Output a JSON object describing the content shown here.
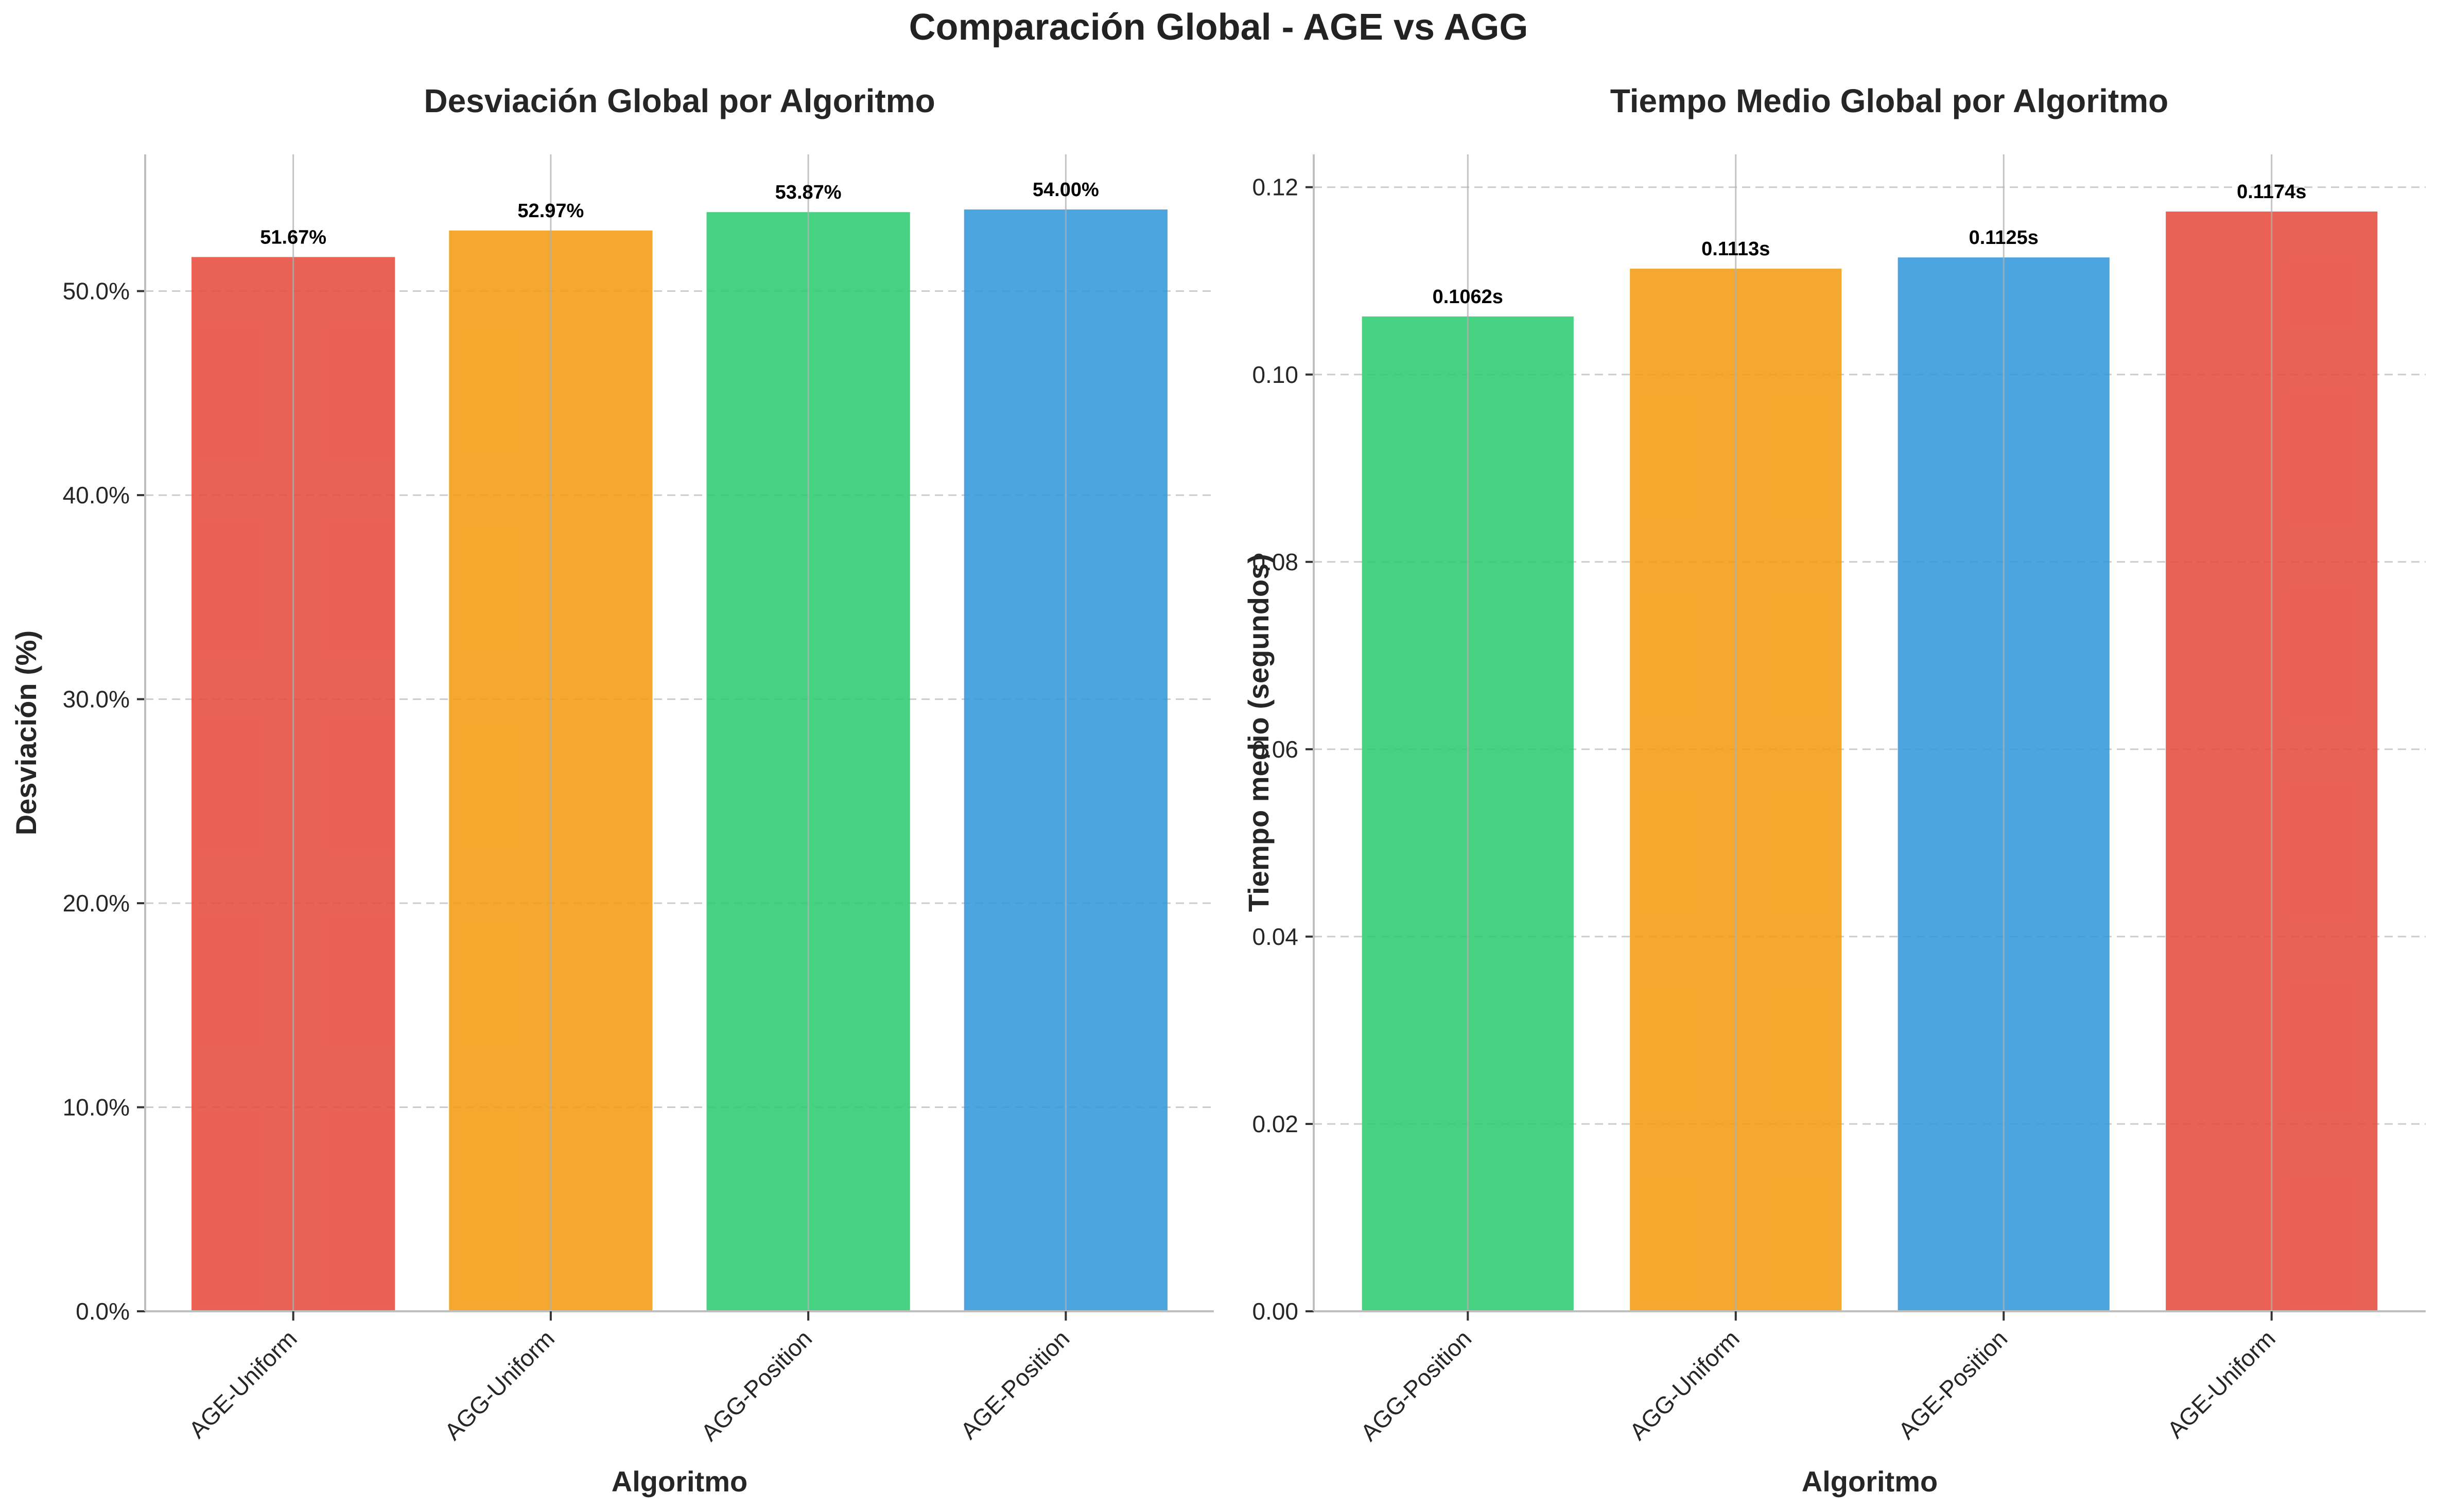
{
  "figure": {
    "suptitle": "Comparación Global - AGE vs AGG"
  },
  "chart_data": [
    {
      "type": "bar",
      "title": "Desviación Global por Algoritmo",
      "xlabel": "Algoritmo",
      "ylabel": "Desviación (%)",
      "categories": [
        "AGE-Uniform",
        "AGG-Uniform",
        "AGG-Position",
        "AGE-Position"
      ],
      "values": [
        51.67,
        52.97,
        53.87,
        54.0
      ],
      "value_labels": [
        "51.67%",
        "52.97%",
        "53.87%",
        "54.00%"
      ],
      "colors": [
        "#e74c3c",
        "#f39c12",
        "#2ecc71",
        "#3498db"
      ],
      "ylim": [
        0,
        56.7
      ],
      "yticks": [
        0,
        10,
        20,
        30,
        40,
        50
      ],
      "ytick_labels": [
        "0.0%",
        "10.0%",
        "20.0%",
        "30.0%",
        "40.0%",
        "50.0%"
      ],
      "grid": true
    },
    {
      "type": "bar",
      "title": "Tiempo Medio Global por Algoritmo",
      "xlabel": "Algoritmo",
      "ylabel": "Tiempo medio (segundos)",
      "categories": [
        "AGG-Position",
        "AGG-Uniform",
        "AGE-Position",
        "AGE-Uniform"
      ],
      "values": [
        0.1062,
        0.1113,
        0.1125,
        0.1174
      ],
      "value_labels": [
        "0.1062s",
        "0.1113s",
        "0.1125s",
        "0.1174s"
      ],
      "colors": [
        "#2ecc71",
        "#f39c12",
        "#3498db",
        "#e74c3c"
      ],
      "ylim": [
        0,
        0.1235
      ],
      "yticks": [
        0,
        0.02,
        0.04,
        0.06,
        0.08,
        0.1,
        0.12
      ],
      "ytick_labels": [
        "0.00",
        "0.02",
        "0.04",
        "0.06",
        "0.08",
        "0.10",
        "0.12"
      ],
      "grid": true
    }
  ]
}
